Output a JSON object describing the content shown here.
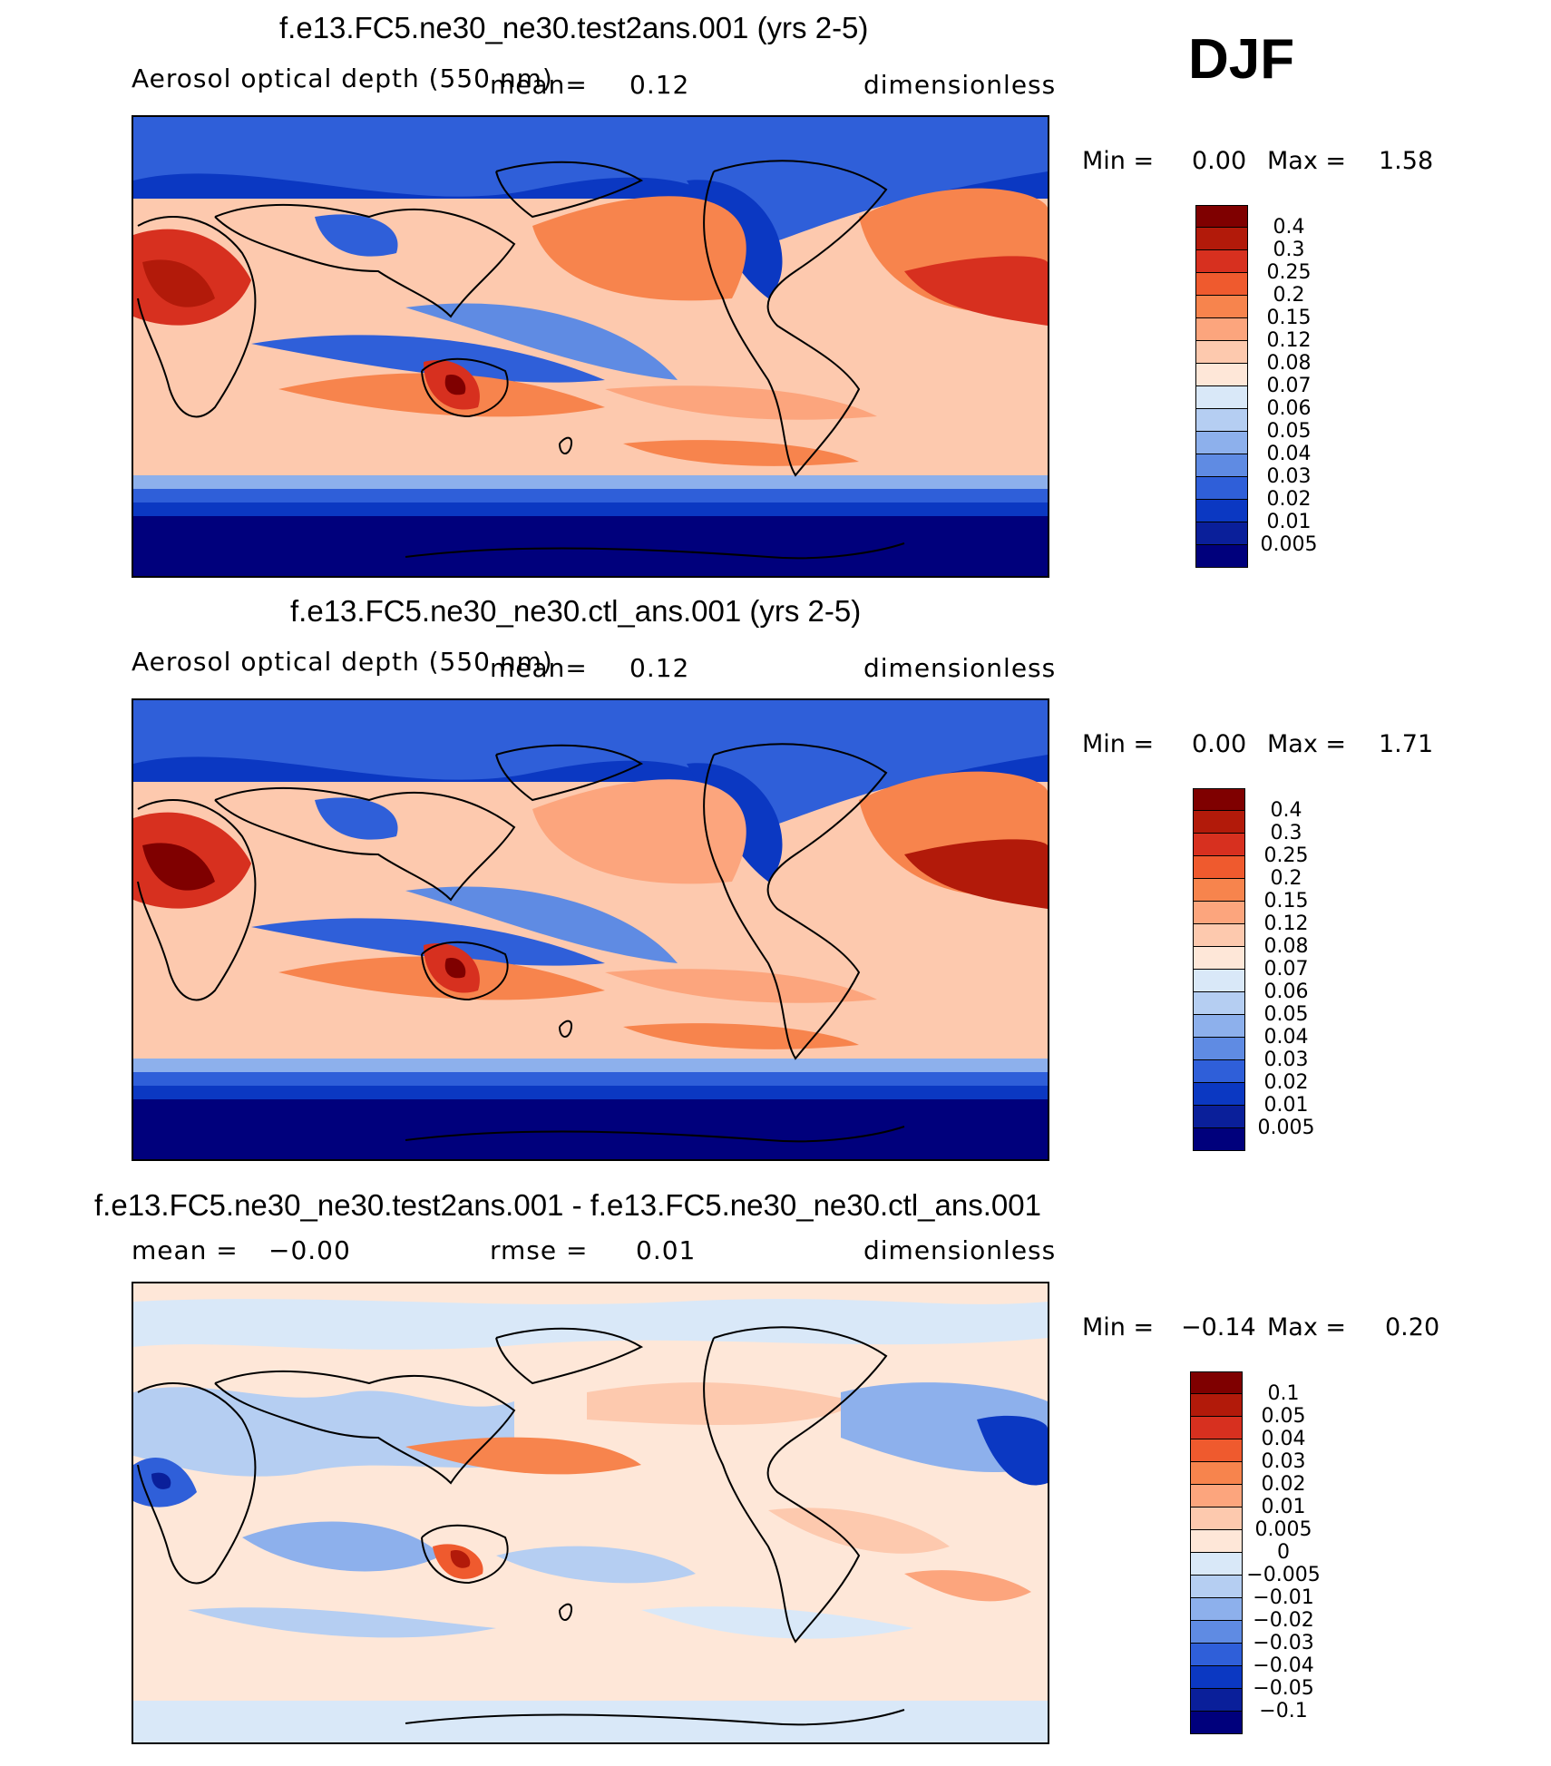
{
  "season": "DJF",
  "units": "dimensionless",
  "chart_data": [
    {
      "type": "heatmap",
      "title": "f.e13.FC5.ne30_ne30.test2ans.001 (yrs 2-5)",
      "subtitle_left": "Aerosol optical depth (550 nm)",
      "stat_label": "mean",
      "stat_sep": "=",
      "stat_value": "0.12",
      "units": "dimensionless",
      "min_label": "Min =",
      "min_value": "0.00",
      "max_label": "Max =",
      "max_value": "1.58",
      "levels": [
        "0.4",
        "0.3",
        "0.25",
        "0.2",
        "0.15",
        "0.12",
        "0.08",
        "0.07",
        "0.06",
        "0.05",
        "0.04",
        "0.03",
        "0.02",
        "0.01",
        "0.005"
      ],
      "colors": [
        "#7f0000",
        "#b21a0a",
        "#d7301f",
        "#ef5a2e",
        "#f7844d",
        "#fca57d",
        "#fdc9ae",
        "#fee7d8",
        "#d9e8f8",
        "#b5cef2",
        "#8db0ec",
        "#5f8be3",
        "#2f5fd9",
        "#0b38c2",
        "#0a1f9a",
        "#00007c"
      ]
    },
    {
      "type": "heatmap",
      "title": "f.e13.FC5.ne30_ne30.ctl_ans.001 (yrs 2-5)",
      "subtitle_left": "Aerosol optical depth (550 nm)",
      "stat_label": "mean",
      "stat_sep": "=",
      "stat_value": "0.12",
      "units": "dimensionless",
      "min_label": "Min =",
      "min_value": "0.00",
      "max_label": "Max =",
      "max_value": "1.71",
      "levels": [
        "0.4",
        "0.3",
        "0.25",
        "0.2",
        "0.15",
        "0.12",
        "0.08",
        "0.07",
        "0.06",
        "0.05",
        "0.04",
        "0.03",
        "0.02",
        "0.01",
        "0.005"
      ],
      "colors": [
        "#7f0000",
        "#b21a0a",
        "#d7301f",
        "#ef5a2e",
        "#f7844d",
        "#fca57d",
        "#fdc9ae",
        "#fee7d8",
        "#d9e8f8",
        "#b5cef2",
        "#8db0ec",
        "#5f8be3",
        "#2f5fd9",
        "#0b38c2",
        "#0a1f9a",
        "#00007c"
      ]
    },
    {
      "type": "heatmap",
      "title": "f.e13.FC5.ne30_ne30.test2ans.001 - f.e13.FC5.ne30_ne30.ctl_ans.001",
      "subtitle_left": "mean =",
      "subtitle_left_value": "−0.00",
      "stat_label": "rmse",
      "stat_sep": "=",
      "stat_value": "0.01",
      "units": "dimensionless",
      "min_label": "Min =",
      "min_value": "−0.14",
      "max_label": "Max =",
      "max_value": "0.20",
      "levels": [
        "0.1",
        "0.05",
        "0.04",
        "0.03",
        "0.02",
        "0.01",
        "0.005",
        "0",
        "−0.005",
        "−0.01",
        "−0.02",
        "−0.03",
        "−0.04",
        "−0.05",
        "−0.1"
      ],
      "colors": [
        "#7f0000",
        "#b21a0a",
        "#d7301f",
        "#ef5a2e",
        "#f7844d",
        "#fca57d",
        "#fdc9ae",
        "#fee7d8",
        "#d9e8f8",
        "#b5cef2",
        "#8db0ec",
        "#5f8be3",
        "#2f5fd9",
        "#0b38c2",
        "#0a1f9a",
        "#00007c"
      ]
    }
  ]
}
